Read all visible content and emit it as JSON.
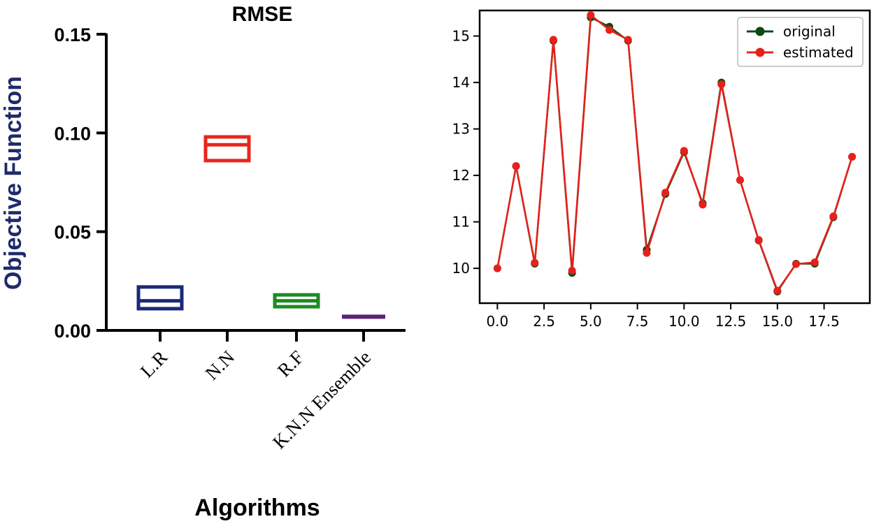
{
  "chart_data": [
    {
      "type": "box",
      "title": "RMSE",
      "xlabel": "Algorithms",
      "ylabel": "Objective Function",
      "ylim": [
        0,
        0.15
      ],
      "yticks": [
        "0.00",
        "0.05",
        "0.10",
        "0.15"
      ],
      "categories": [
        "L.R",
        "N.N",
        "R.F",
        "K.N.N Ensemble"
      ],
      "boxes": [
        {
          "name": "L.R",
          "q1": 0.011,
          "median": 0.015,
          "q3": 0.022,
          "color": "#1b2a78"
        },
        {
          "name": "N.N",
          "q1": 0.086,
          "median": 0.094,
          "q3": 0.098,
          "color": "#e8261b"
        },
        {
          "name": "R.F",
          "q1": 0.012,
          "median": 0.015,
          "q3": 0.018,
          "color": "#1e8a24"
        },
        {
          "name": "K.N.N Ensemble",
          "q1": 0.006,
          "median": 0.0065,
          "q3": 0.008,
          "color": "#5b2477"
        }
      ],
      "ylabel_color": "#1f2a6b",
      "grid": false
    },
    {
      "type": "line",
      "title": "",
      "xlabel": "",
      "ylabel": "",
      "xlim": [
        -0.95,
        19.95
      ],
      "ylim": [
        9.25,
        15.55
      ],
      "xticks": [
        "0.0",
        "2.5",
        "5.0",
        "7.5",
        "10.0",
        "12.5",
        "15.0",
        "17.5"
      ],
      "yticks": [
        "10",
        "11",
        "12",
        "13",
        "14",
        "15"
      ],
      "x": [
        0,
        1,
        2,
        3,
        4,
        5,
        6,
        7,
        8,
        9,
        10,
        11,
        12,
        13,
        14,
        15,
        16,
        17,
        18,
        19
      ],
      "series": [
        {
          "name": "original",
          "color": "#0b4a12",
          "values": [
            10.0,
            12.2,
            10.1,
            14.9,
            9.9,
            15.4,
            15.2,
            14.9,
            10.4,
            11.6,
            12.5,
            11.4,
            14.0,
            11.9,
            10.6,
            9.5,
            10.1,
            10.1,
            11.1,
            12.4
          ]
        },
        {
          "name": "estimated",
          "color": "#e8201b",
          "values": [
            10.0,
            12.2,
            10.12,
            14.92,
            9.95,
            15.45,
            15.13,
            14.92,
            10.33,
            11.63,
            12.53,
            11.37,
            13.96,
            11.9,
            10.61,
            9.52,
            10.09,
            10.13,
            11.12,
            12.4
          ]
        }
      ],
      "legend_position": "top-right",
      "grid": false
    }
  ]
}
